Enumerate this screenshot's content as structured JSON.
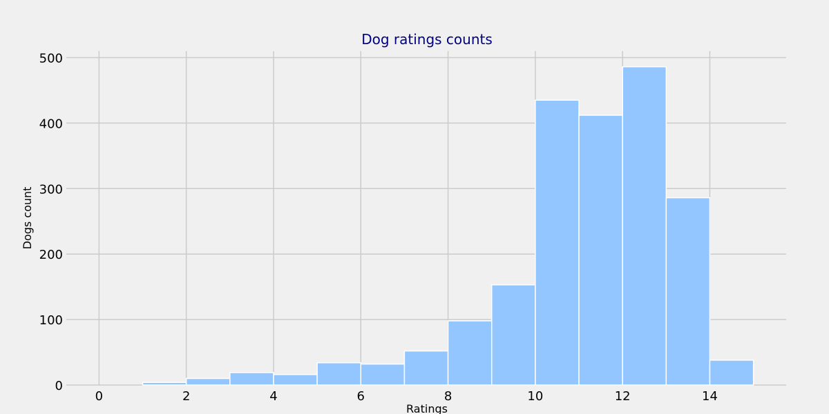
{
  "chart_data": {
    "type": "bar",
    "title": "Dog ratings counts",
    "xlabel": "Ratings",
    "ylabel": "Dogs count",
    "bins": [
      [
        1,
        2
      ],
      [
        2,
        3
      ],
      [
        3,
        4
      ],
      [
        4,
        5
      ],
      [
        5,
        6
      ],
      [
        6,
        7
      ],
      [
        7,
        8
      ],
      [
        8,
        9
      ],
      [
        9,
        10
      ],
      [
        10,
        11
      ],
      [
        11,
        12
      ],
      [
        12,
        13
      ],
      [
        13,
        14
      ],
      [
        14,
        15
      ]
    ],
    "values": [
      4,
      10,
      19,
      16,
      34,
      32,
      52,
      98,
      153,
      435,
      412,
      486,
      286,
      38
    ],
    "xlim": [
      -0.75,
      15.75
    ],
    "ylim": [
      0,
      510
    ],
    "xticks": [
      0,
      2,
      4,
      6,
      8,
      10,
      12,
      14
    ],
    "yticks": [
      0,
      100,
      200,
      300,
      400,
      500
    ],
    "grid": true,
    "colors": {
      "bar": "#93c5ff",
      "bar_edge": "#ffffff",
      "background": "#f0f0f0",
      "grid": "#cbcbcb",
      "title": "#000080"
    }
  }
}
